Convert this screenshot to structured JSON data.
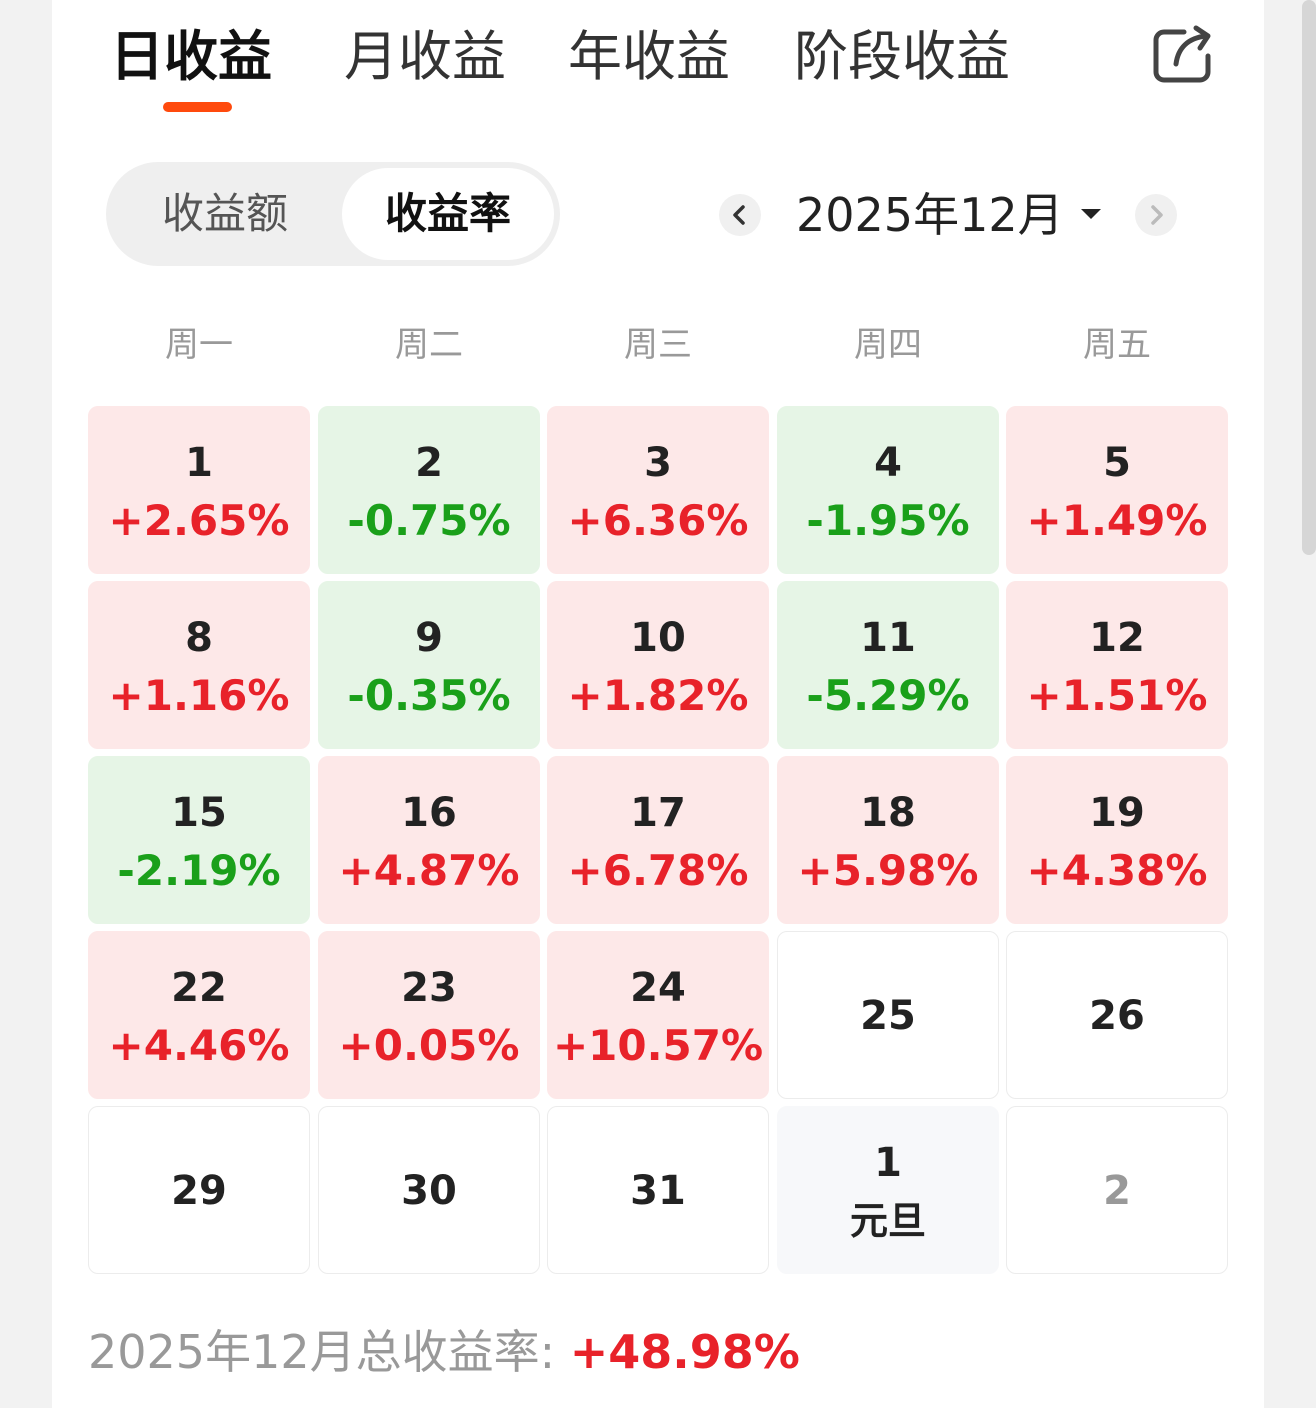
{
  "tabs": [
    {
      "label": "日收益",
      "active": true
    },
    {
      "label": "月收益",
      "active": false
    },
    {
      "label": "年收益",
      "active": false
    },
    {
      "label": "阶段收益",
      "active": false
    }
  ],
  "toggle": {
    "amount_label": "收益额",
    "rate_label": "收益率",
    "selected": "收益率"
  },
  "month_selector": {
    "label": "2025年12月",
    "prev_icon": "chevron-left-icon",
    "next_icon": "chevron-right-icon",
    "dropdown_icon": "caret-down-icon"
  },
  "share_icon": "share-icon",
  "weekdays": [
    "周一",
    "周二",
    "周三",
    "周四",
    "周五"
  ],
  "colors": {
    "accent": "#ff4a0d",
    "gain": "#e8222a",
    "loss": "#1aa01a",
    "gain_bg": "#fde8e8",
    "loss_bg": "#e6f5e6"
  },
  "calendar": [
    [
      {
        "day": "1",
        "rate": "+2.65%",
        "trend": "pos"
      },
      {
        "day": "2",
        "rate": "-0.75%",
        "trend": "neg"
      },
      {
        "day": "3",
        "rate": "+6.36%",
        "trend": "pos"
      },
      {
        "day": "4",
        "rate": "-1.95%",
        "trend": "neg"
      },
      {
        "day": "5",
        "rate": "+1.49%",
        "trend": "pos"
      }
    ],
    [
      {
        "day": "8",
        "rate": "+1.16%",
        "trend": "pos"
      },
      {
        "day": "9",
        "rate": "-0.35%",
        "trend": "neg"
      },
      {
        "day": "10",
        "rate": "+1.82%",
        "trend": "pos"
      },
      {
        "day": "11",
        "rate": "-5.29%",
        "trend": "neg"
      },
      {
        "day": "12",
        "rate": "+1.51%",
        "trend": "pos"
      }
    ],
    [
      {
        "day": "15",
        "rate": "-2.19%",
        "trend": "neg"
      },
      {
        "day": "16",
        "rate": "+4.87%",
        "trend": "pos"
      },
      {
        "day": "17",
        "rate": "+6.78%",
        "trend": "pos"
      },
      {
        "day": "18",
        "rate": "+5.98%",
        "trend": "pos"
      },
      {
        "day": "19",
        "rate": "+4.38%",
        "trend": "pos"
      }
    ],
    [
      {
        "day": "22",
        "rate": "+4.46%",
        "trend": "pos"
      },
      {
        "day": "23",
        "rate": "+0.05%",
        "trend": "pos"
      },
      {
        "day": "24",
        "rate": "+10.57%",
        "trend": "pos"
      },
      {
        "day": "25",
        "rate": "",
        "trend": "none"
      },
      {
        "day": "26",
        "rate": "",
        "trend": "none"
      }
    ],
    [
      {
        "day": "29",
        "rate": "",
        "trend": "none"
      },
      {
        "day": "30",
        "rate": "",
        "trend": "none"
      },
      {
        "day": "31",
        "rate": "",
        "trend": "none"
      },
      {
        "day": "1",
        "rate": "",
        "trend": "next",
        "holiday": "元旦"
      },
      {
        "day": "2",
        "rate": "",
        "trend": "muted"
      }
    ]
  ],
  "summary": {
    "label": "2025年12月总收益率: ",
    "value": "+48.98%"
  }
}
